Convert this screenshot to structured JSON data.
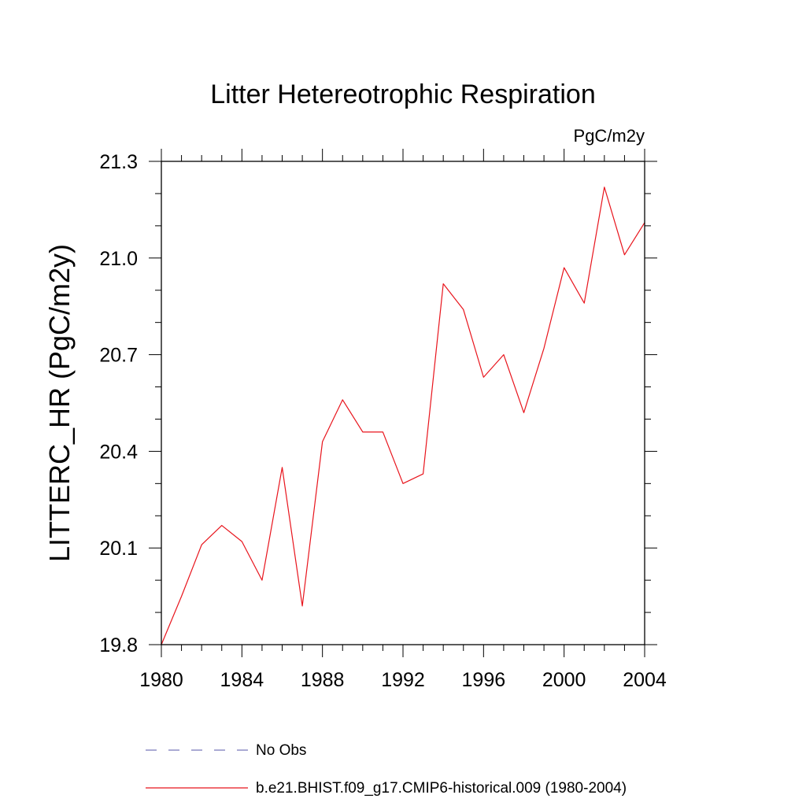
{
  "chart_data": {
    "type": "line",
    "title": "Litter Hetereotrophic Respiration",
    "units_label": "PgC/m2y",
    "ylabel": "LITTERC_HR  (PgC/m2y)",
    "xlabel": "",
    "xlim": [
      1980,
      2004
    ],
    "ylim": [
      19.8,
      21.3
    ],
    "x_ticks": [
      1980,
      1984,
      1988,
      1992,
      1996,
      2000,
      2004
    ],
    "x_tick_labels": [
      "1980",
      "1984",
      "1988",
      "1992",
      "1996",
      "2000",
      "2004"
    ],
    "y_ticks": [
      19.8,
      20.1,
      20.4,
      20.7,
      21.0,
      21.3
    ],
    "y_tick_labels": [
      "19.8",
      "20.1",
      "20.4",
      "20.7",
      "21.0",
      "21.3"
    ],
    "x_minor_step": 1,
    "y_minor_step": 0.1,
    "grid": false,
    "legend_position": "bottom",
    "series": [
      {
        "name": "No Obs",
        "color": "#7777bb",
        "dash": "dashed",
        "x": [],
        "values": []
      },
      {
        "name": "b.e21.BHIST.f09_g17.CMIP6-historical.009 (1980-2004)",
        "color": "#e8141c",
        "dash": "solid",
        "x": [
          1980,
          1981,
          1982,
          1983,
          1984,
          1985,
          1986,
          1987,
          1988,
          1989,
          1990,
          1991,
          1992,
          1993,
          1994,
          1995,
          1996,
          1997,
          1998,
          1999,
          2000,
          2001,
          2002,
          2003,
          2004
        ],
        "values": [
          19.8,
          19.95,
          20.11,
          20.17,
          20.12,
          20.0,
          20.35,
          19.92,
          20.43,
          20.56,
          20.46,
          20.46,
          20.3,
          20.33,
          20.92,
          20.84,
          20.63,
          20.7,
          20.52,
          20.72,
          20.97,
          20.86,
          21.22,
          21.01,
          21.11
        ]
      }
    ]
  }
}
